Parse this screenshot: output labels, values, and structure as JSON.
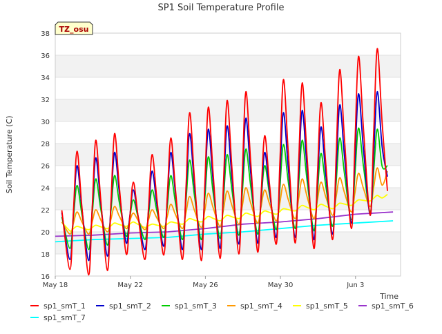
{
  "chart_data": {
    "type": "line",
    "title": "SP1 Soil Temperature Profile",
    "xlabel": "Time",
    "ylabel": "Soil Temperature (C)",
    "ylim": [
      16,
      38
    ],
    "yticks": [
      16,
      18,
      20,
      22,
      24,
      26,
      28,
      30,
      32,
      34,
      36,
      38
    ],
    "xlim": [
      0,
      18.4
    ],
    "xticks": [
      {
        "label": "May 18",
        "day": 0
      },
      {
        "label": "May 22",
        "day": 4
      },
      {
        "label": "May 26",
        "day": 8
      },
      {
        "label": "May 30",
        "day": 12
      },
      {
        "label": "Jun 3",
        "day": 16
      }
    ],
    "grid": true,
    "legend_position": "bottom",
    "annotation": {
      "text": "TZ_osu",
      "bg_color": "#ffffcc",
      "text_color": "#aa0000"
    },
    "series": [
      {
        "name": "sp1_smT_1",
        "color": "#ff0000",
        "kind": "daily_peaks",
        "peaks": [
          27.3,
          28.3,
          28.9,
          24.5,
          27.0,
          28.5,
          30.8,
          31.3,
          31.9,
          32.7,
          28.7,
          33.8,
          33.5,
          31.7,
          34.7,
          35.9,
          36.6
        ],
        "troughs": [
          16.6,
          16.1,
          16.5,
          18.0,
          17.5,
          17.9,
          17.5,
          17.4,
          17.6,
          18.0,
          18.2,
          18.9,
          19.0,
          18.5,
          19.3,
          20.3,
          21.5
        ],
        "last": 23.7
      },
      {
        "name": "sp1_smT_2",
        "color": "#0000cc",
        "kind": "daily_peaks",
        "peaks": [
          26.0,
          26.7,
          27.2,
          23.8,
          25.5,
          27.2,
          28.9,
          29.3,
          29.6,
          30.3,
          27.2,
          30.8,
          31.0,
          29.5,
          31.5,
          32.5,
          32.7
        ],
        "troughs": [
          17.5,
          17.4,
          17.8,
          19.0,
          18.4,
          18.7,
          18.4,
          18.4,
          18.5,
          18.9,
          19.0,
          19.5,
          19.5,
          19.3,
          19.8,
          20.8,
          21.5
        ],
        "last": 25.0
      },
      {
        "name": "sp1_smT_3",
        "color": "#00cc00",
        "kind": "daily_peaks",
        "peaks": [
          24.2,
          24.8,
          25.1,
          22.9,
          23.8,
          25.1,
          26.5,
          26.8,
          27.0,
          27.5,
          26.0,
          27.9,
          28.3,
          27.1,
          28.5,
          29.4,
          29.3
        ],
        "troughs": [
          18.5,
          18.4,
          18.8,
          19.6,
          19.3,
          19.5,
          19.3,
          19.3,
          19.4,
          19.7,
          19.8,
          20.2,
          20.3,
          20.1,
          20.5,
          21.1,
          21.8
        ],
        "last": 26.0
      },
      {
        "name": "sp1_smT_4",
        "color": "#ff9900",
        "kind": "daily_peaks",
        "peaks": [
          21.8,
          22.0,
          22.3,
          21.7,
          22.0,
          22.5,
          23.2,
          23.5,
          23.7,
          24.0,
          23.8,
          24.3,
          24.8,
          24.5,
          24.9,
          25.3,
          25.8
        ],
        "troughs": [
          19.8,
          19.8,
          20.0,
          20.3,
          20.2,
          20.3,
          20.3,
          20.4,
          20.5,
          20.7,
          20.8,
          21.0,
          21.2,
          21.2,
          21.5,
          21.8,
          22.3
        ],
        "first": 20.9,
        "last": 25.5
      },
      {
        "name": "sp1_smT_5",
        "color": "#ffff00",
        "kind": "daily_peaks",
        "peaks": [
          20.5,
          20.6,
          20.8,
          20.9,
          20.7,
          20.9,
          21.2,
          21.4,
          21.5,
          21.7,
          21.9,
          22.1,
          22.4,
          22.5,
          22.6,
          22.9,
          23.3
        ],
        "troughs": [
          20.1,
          20.2,
          20.3,
          20.5,
          20.4,
          20.5,
          20.7,
          20.9,
          21.0,
          21.2,
          21.4,
          21.6,
          21.9,
          22.0,
          22.1,
          22.4,
          22.8
        ],
        "first": 20.9,
        "last": 23.4
      },
      {
        "name": "sp1_smT_6",
        "color": "#9933cc",
        "kind": "trend",
        "points": [
          [
            0,
            19.6
          ],
          [
            2,
            19.7
          ],
          [
            4,
            19.9
          ],
          [
            6,
            20.0
          ],
          [
            8,
            20.3
          ],
          [
            10,
            20.7
          ],
          [
            12,
            20.9
          ],
          [
            14,
            21.2
          ],
          [
            16,
            21.6
          ],
          [
            18,
            21.8
          ]
        ]
      },
      {
        "name": "sp1_smT_7",
        "color": "#00ffff",
        "kind": "trend",
        "points": [
          [
            0,
            19.1
          ],
          [
            2,
            19.3
          ],
          [
            4,
            19.4
          ],
          [
            6,
            19.5
          ],
          [
            8,
            19.8
          ],
          [
            10,
            20.0
          ],
          [
            12,
            20.3
          ],
          [
            14,
            20.6
          ],
          [
            16,
            20.8
          ],
          [
            18,
            21.0
          ]
        ]
      }
    ]
  }
}
